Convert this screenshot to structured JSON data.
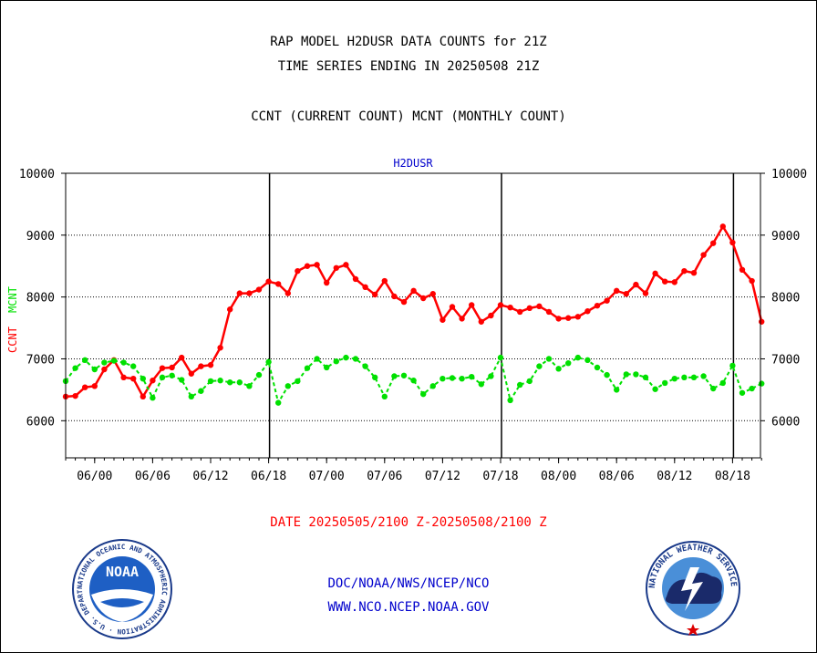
{
  "header": {
    "line1": "RAP MODEL H2DUSR DATA COUNTS for 21Z",
    "line2": "TIME SERIES ENDING IN 20250508 21Z",
    "line3": "CCNT (CURRENT COUNT) MCNT (MONTHLY COUNT)"
  },
  "footer": {
    "date_range": "DATE 20250505/2100 Z-20250508/2100 Z",
    "org": "DOC/NOAA/NWS/NCEP/NCO",
    "url": "WWW.NCO.NCEP.NOAA.GOV"
  },
  "logos": {
    "left_text": "NOAA",
    "left_ring": "NATIONAL OCEANIC AND ATMOSPHERIC ADMINISTRATION · U.S. DEPARTMENT OF COMMERCE",
    "right_ring": "NATIONAL WEATHER SERVICE"
  },
  "colors": {
    "ccnt": "#ff0000",
    "mcnt": "#00e000",
    "title_blue": "#0000cc",
    "date_red": "#ff0000"
  },
  "chart_data": {
    "type": "line",
    "title": "H2DUSR",
    "ylabel_ccnt": "CCNT",
    "ylabel_mcnt": "MCNT",
    "ylim": [
      5400,
      10000
    ],
    "yticks": [
      6000,
      7000,
      8000,
      9000,
      10000
    ],
    "xticks": [
      "06/00",
      "06/06",
      "06/12",
      "06/18",
      "07/00",
      "07/06",
      "07/12",
      "07/18",
      "08/00",
      "08/06",
      "08/12",
      "08/18"
    ],
    "grid": true,
    "series": [
      {
        "name": "CCNT",
        "color": "#ff0000",
        "values": [
          6390,
          6400,
          6540,
          6560,
          6830,
          6980,
          6700,
          6680,
          6390,
          6650,
          6850,
          6860,
          7020,
          6760,
          6880,
          6900,
          7180,
          7800,
          8060,
          8060,
          8120,
          8250,
          8210,
          8060,
          8420,
          8500,
          8520,
          8230,
          8470,
          8520,
          8290,
          8160,
          8040,
          8260,
          8010,
          7920,
          8100,
          7980,
          8050,
          7630,
          7840,
          7650,
          7870,
          7600,
          7700,
          7870,
          7830,
          7760,
          7820,
          7850,
          7760,
          7650,
          7660,
          7680,
          7770,
          7860,
          7940,
          8100,
          8050,
          8200,
          8060,
          8380,
          8250,
          8240,
          8420,
          8390,
          8680,
          8870,
          9140,
          8880,
          8440,
          8260,
          7600
        ]
      },
      {
        "name": "MCNT",
        "color": "#00e000",
        "values": [
          6640,
          6850,
          6980,
          6830,
          6940,
          6970,
          6940,
          6880,
          6680,
          6370,
          6700,
          6730,
          6660,
          6390,
          6480,
          6640,
          6650,
          6620,
          6620,
          6560,
          6740,
          6950,
          6290,
          6560,
          6640,
          6850,
          7000,
          6860,
          6960,
          7020,
          7000,
          6880,
          6700,
          6390,
          6720,
          6730,
          6650,
          6430,
          6560,
          6680,
          6690,
          6680,
          6710,
          6590,
          6720,
          7020,
          6330,
          6580,
          6640,
          6880,
          7000,
          6840,
          6930,
          7020,
          6980,
          6860,
          6740,
          6500,
          6750,
          6750,
          6700,
          6510,
          6610,
          6680,
          6700,
          6700,
          6720,
          6520,
          6610,
          6890,
          6450,
          6520,
          6600
        ]
      }
    ],
    "date_label": "DATE 20250505/2100 Z-20250508/2100 Z"
  }
}
